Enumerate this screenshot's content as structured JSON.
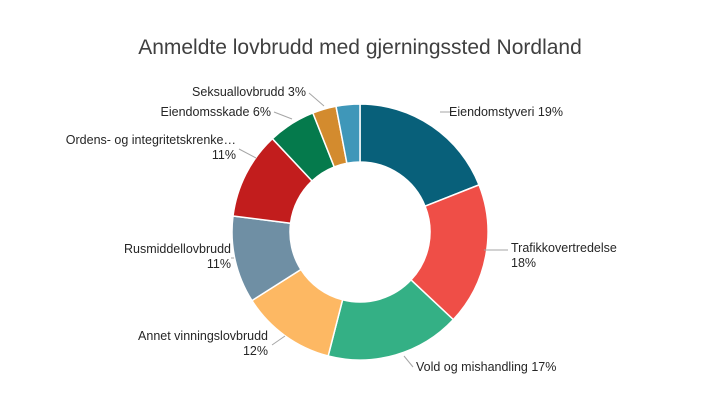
{
  "chart_data": {
    "type": "pie",
    "donut": true,
    "title": "Anmeldte lovbrudd med gjerningssted Nordland",
    "legend": "none",
    "slices": [
      {
        "label": "Eiendomstyveri",
        "value": 19,
        "value_label": "19%",
        "color": "#08607a"
      },
      {
        "label": "Trafikkovertredelse",
        "value": 18,
        "value_label": "18%",
        "color": "#ef4e47"
      },
      {
        "label": "Vold og mishandling",
        "value": 17,
        "value_label": "17%",
        "color": "#34b085"
      },
      {
        "label": "Annet vinningslovbrudd",
        "value": 12,
        "value_label": "12%",
        "color": "#fdb863"
      },
      {
        "label": "Rusmiddellovbrudd",
        "value": 11,
        "value_label": "11%",
        "color": "#6f8fa4"
      },
      {
        "label": "Ordens- og integritetskrenke…",
        "value": 11,
        "value_label": "11%",
        "color": "#c21d1d"
      },
      {
        "label": "Eiendomsskade",
        "value": 6,
        "value_label": "6%",
        "color": "#057a4c"
      },
      {
        "label": "Seksuallovbrudd",
        "value": 3,
        "value_label": "3%",
        "color": "#d38b2e"
      },
      {
        "label": "",
        "value": 3,
        "value_label": "",
        "color": "#3f97b9"
      }
    ]
  }
}
